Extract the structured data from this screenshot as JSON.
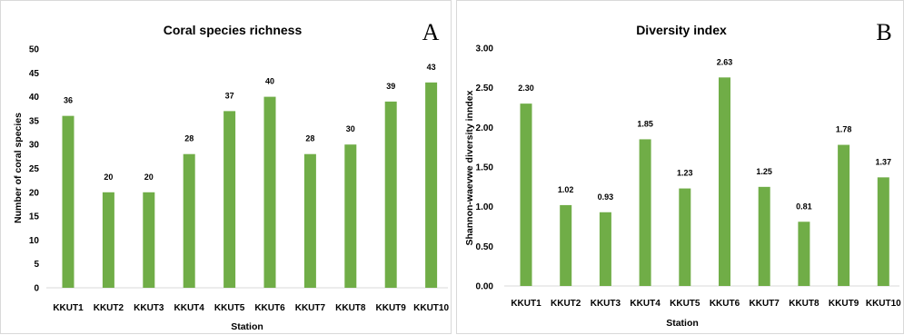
{
  "chart_data": [
    {
      "panel_label": "A",
      "type": "bar",
      "title": "Coral species richness",
      "xlabel": "Station",
      "ylabel": "Number of coral species",
      "categories": [
        "KKUT1",
        "KKUT2",
        "KKUT3",
        "KKUT4",
        "KKUT5",
        "KKUT6",
        "KKUT7",
        "KKUT8",
        "KKUT9",
        "KKUT10"
      ],
      "values": [
        36,
        20,
        20,
        28,
        37,
        40,
        28,
        30,
        39,
        43
      ],
      "data_labels": [
        "36",
        "20",
        "20",
        "28",
        "37",
        "40",
        "28",
        "30",
        "39",
        "43"
      ],
      "ylim": [
        0,
        50
      ],
      "yticks": [
        0,
        5,
        10,
        15,
        20,
        25,
        30,
        35,
        40,
        45,
        50
      ],
      "ytick_labels": [
        "0",
        "5",
        "10",
        "15",
        "20",
        "25",
        "30",
        "35",
        "40",
        "45",
        "50"
      ],
      "grid": false,
      "bar_color": "#70ad47"
    },
    {
      "panel_label": "B",
      "type": "bar",
      "title": "Diversity index",
      "xlabel": "Station",
      "ylabel": "Shannon-waevwe diversity inndex",
      "categories": [
        "KKUT1",
        "KKUT2",
        "KKUT3",
        "KKUT4",
        "KKUT5",
        "KKUT6",
        "KKUT7",
        "KKUT8",
        "KKUT9",
        "KKUT10"
      ],
      "values": [
        2.3,
        1.02,
        0.93,
        1.85,
        1.23,
        2.63,
        1.25,
        0.81,
        1.78,
        1.37
      ],
      "data_labels": [
        "2.30",
        "1.02",
        "0.93",
        "1.85",
        "1.23",
        "2.63",
        "1.25",
        "0.81",
        "1.78",
        "1.37"
      ],
      "ylim": [
        0,
        3
      ],
      "yticks": [
        0,
        0.5,
        1,
        1.5,
        2,
        2.5,
        3
      ],
      "ytick_labels": [
        "0.00",
        "0.50",
        "1.00",
        "1.50",
        "2.00",
        "2.50",
        "3.00"
      ],
      "grid": false,
      "bar_color": "#70ad47"
    }
  ]
}
